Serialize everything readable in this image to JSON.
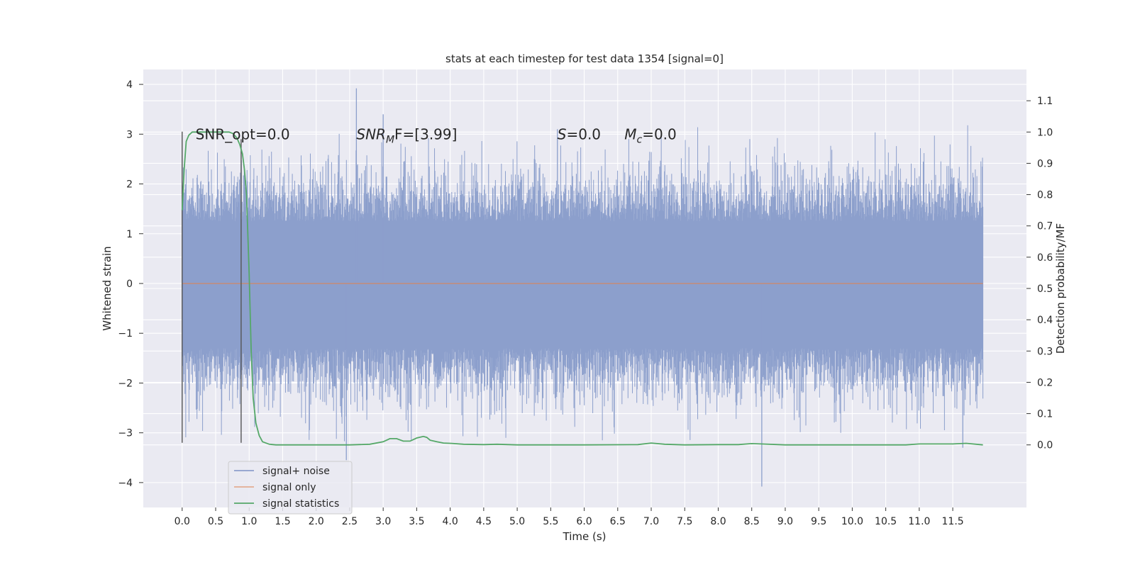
{
  "chart_data": {
    "type": "line",
    "title": "stats at each timestep for test data 1354 [signal=0]",
    "xlabel": "Time (s)",
    "ylabel": "Whitened strain",
    "y2label": "Detection probability/MF",
    "xlim": [
      -0.58,
      12.6
    ],
    "ylim": [
      -4.5,
      4.3
    ],
    "y2lim": [
      -0.2,
      1.2
    ],
    "x_ticks": [
      "0.0",
      "0.5",
      "1.0",
      "1.5",
      "2.0",
      "2.5",
      "3.0",
      "3.5",
      "4.0",
      "4.5",
      "5.0",
      "5.5",
      "6.0",
      "6.5",
      "7.0",
      "7.5",
      "8.0",
      "8.5",
      "9.0",
      "9.5",
      "10.0",
      "10.5",
      "11.0",
      "11.5"
    ],
    "y_ticks": [
      "−4",
      "−3",
      "−2",
      "−1",
      "0",
      "1",
      "2",
      "3",
      "4"
    ],
    "y2_ticks": [
      "0.0",
      "0.1",
      "0.2",
      "0.3",
      "0.4",
      "0.5",
      "0.6",
      "0.7",
      "0.8",
      "0.9",
      "1.0",
      "1.1"
    ],
    "background_color": "#eaeaf2",
    "grid": true,
    "legend_position": "lower-left",
    "noise_band": {
      "x_start": 0.0,
      "x_end": 11.95,
      "core_low": -1.3,
      "core_high": 1.25,
      "envelope_high": 2.1,
      "envelope_low": -2.1,
      "peak_max": 3.92,
      "trough_min": -4.08
    },
    "vertical_markers": [
      {
        "x": 0.0,
        "y_low": -3.2,
        "y_high": 3.05
      },
      {
        "x": 0.88,
        "y_low": -3.2,
        "y_high": 2.9
      }
    ],
    "annotations": [
      {
        "x": 0.2,
        "y": 3.0,
        "text": "SNR_opt=0.0"
      },
      {
        "x": 2.6,
        "y": 3.0,
        "text": "SNR",
        "sub": "M",
        "rest": "F=[3.99]",
        "italic": true
      },
      {
        "x": 5.6,
        "y": 3.0,
        "text": "S",
        "sub": "",
        "rest": "=0.0",
        "italic": true
      },
      {
        "x": 6.6,
        "y": 3.0,
        "text": "M",
        "sub": "c",
        "rest": "=0.0",
        "italic": true
      }
    ],
    "series": [
      {
        "name": "signal+ noise",
        "color": "#8c9fcc",
        "type": "noise"
      },
      {
        "name": "signal only",
        "color": "#dd8452",
        "x": [
          0.0,
          11.95
        ],
        "y": [
          0.0,
          0.0
        ]
      },
      {
        "name": "signal statistics",
        "color": "#55a868",
        "axis": "right",
        "x": [
          0.0,
          0.03,
          0.06,
          0.1,
          0.15,
          0.2,
          0.3,
          0.4,
          0.5,
          0.6,
          0.7,
          0.76,
          0.82,
          0.86,
          0.9,
          0.93,
          0.96,
          1.0,
          1.03,
          1.06,
          1.1,
          1.15,
          1.2,
          1.3,
          1.4,
          1.5,
          2.0,
          2.5,
          2.8,
          3.0,
          3.1,
          3.2,
          3.3,
          3.4,
          3.5,
          3.6,
          3.65,
          3.7,
          3.8,
          3.9,
          4.0,
          4.2,
          4.5,
          4.7,
          5.0,
          6.0,
          6.8,
          7.0,
          7.2,
          7.5,
          8.0,
          8.3,
          8.5,
          9.0,
          10.0,
          10.8,
          11.0,
          11.5,
          11.7,
          11.95
        ],
        "y": [
          0.75,
          0.88,
          0.97,
          0.99,
          1.0,
          1.0,
          1.0,
          1.0,
          1.0,
          1.0,
          1.0,
          0.995,
          0.98,
          0.96,
          0.93,
          0.88,
          0.8,
          0.55,
          0.3,
          0.15,
          0.07,
          0.03,
          0.01,
          0.002,
          0.0,
          0.0,
          0.0,
          0.0,
          0.002,
          0.01,
          0.02,
          0.02,
          0.012,
          0.012,
          0.022,
          0.027,
          0.024,
          0.015,
          0.01,
          0.006,
          0.005,
          0.002,
          0.001,
          0.002,
          0.0,
          0.0,
          0.001,
          0.006,
          0.002,
          0.0,
          0.001,
          0.001,
          0.004,
          0.0,
          0.0,
          0.0,
          0.003,
          0.003,
          0.005,
          0.0
        ]
      }
    ]
  }
}
